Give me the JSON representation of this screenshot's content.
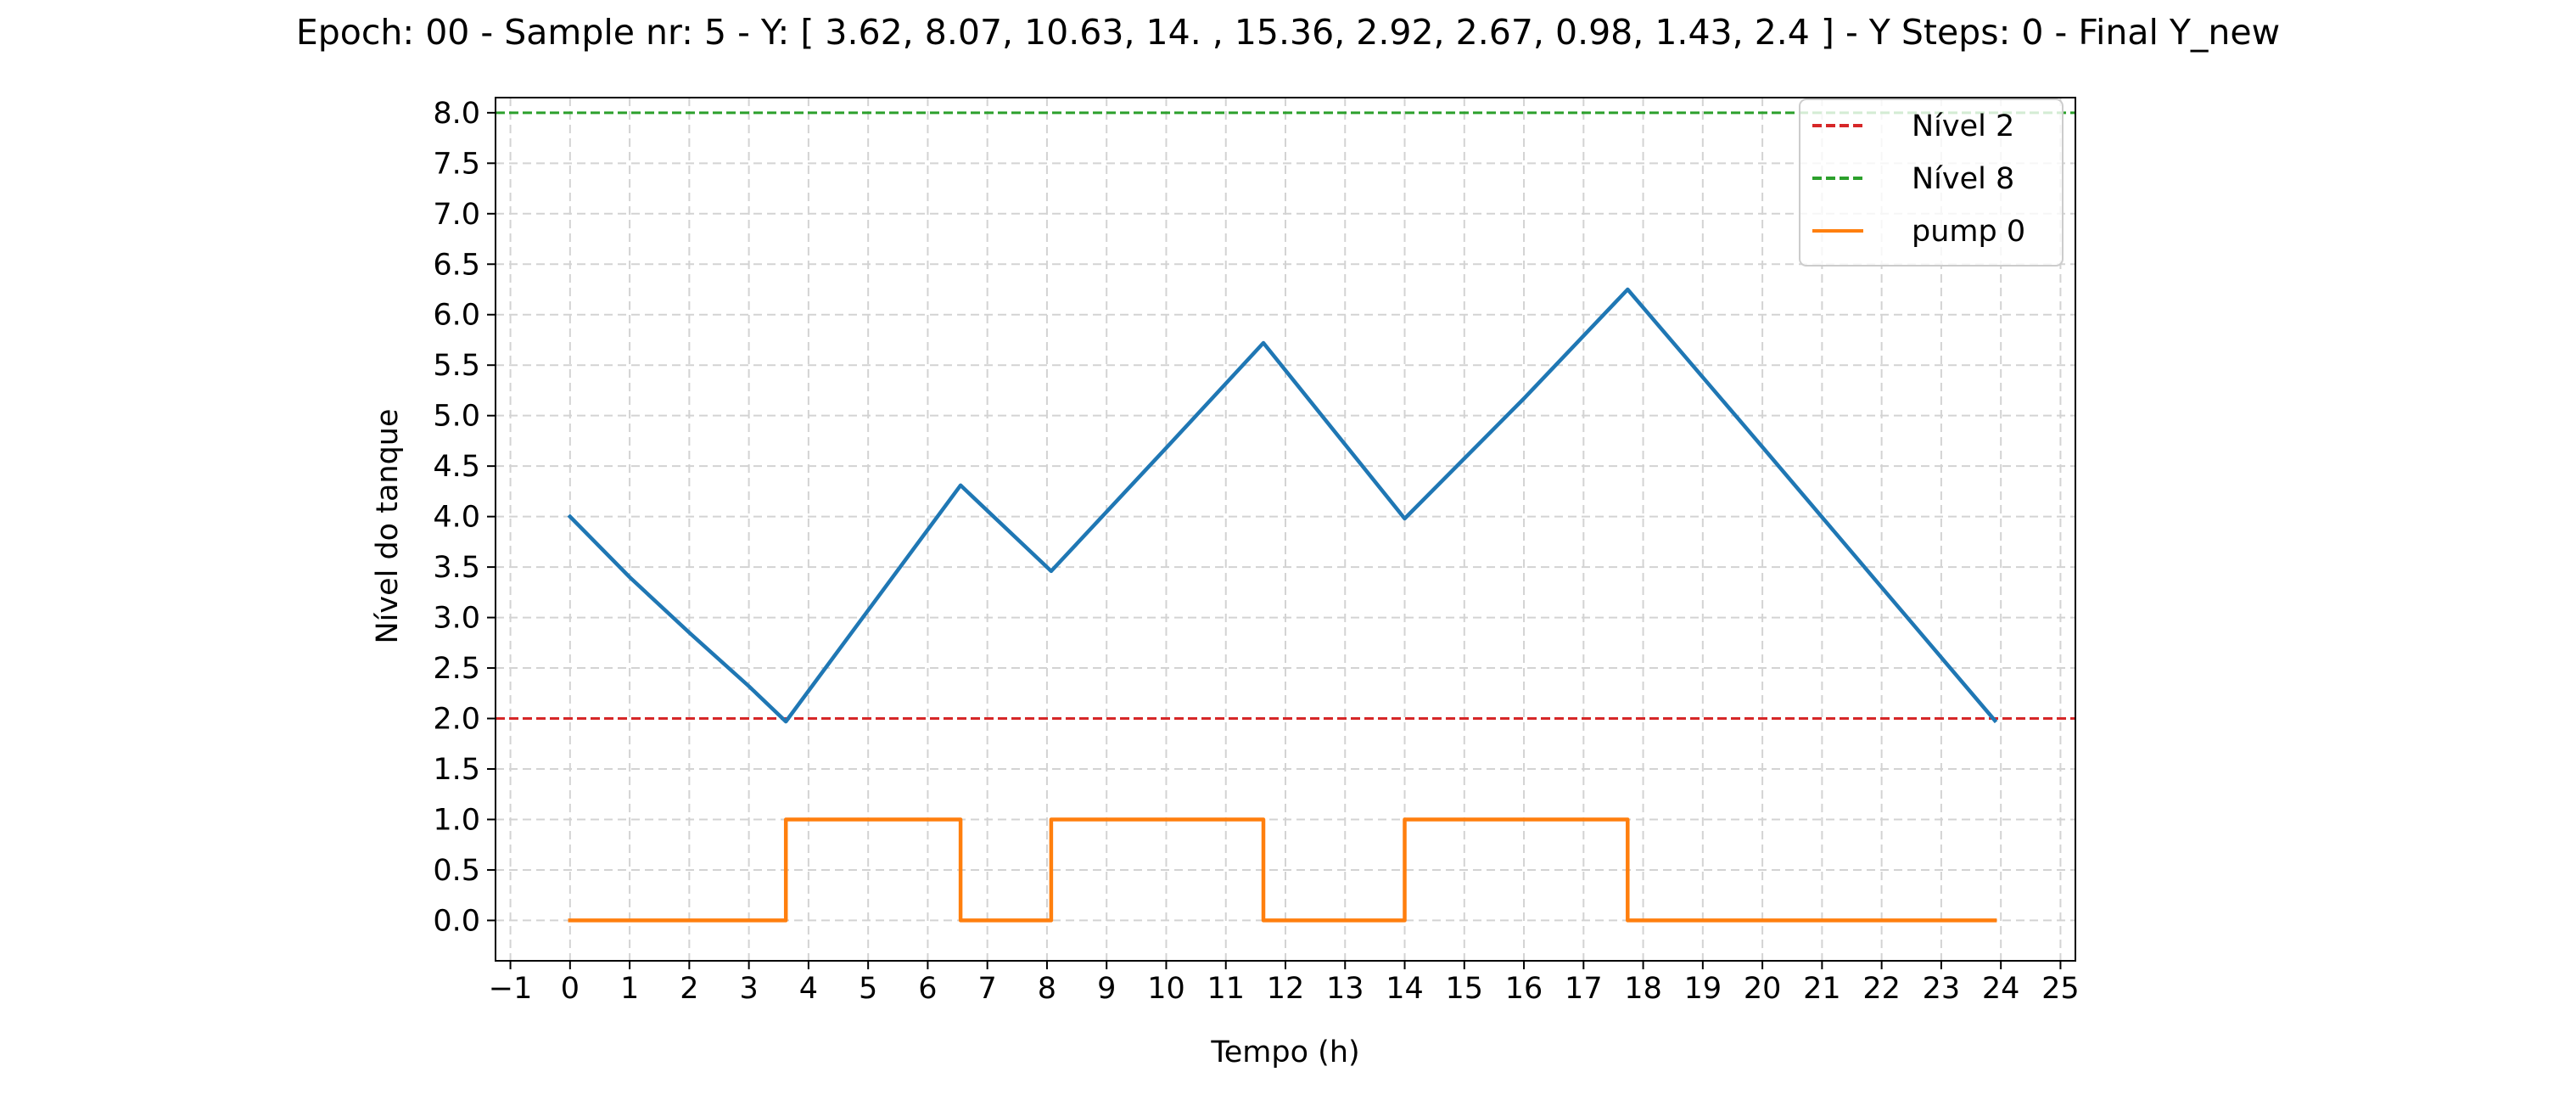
{
  "chart_data": {
    "type": "line",
    "title": "Epoch: 00 - Sample nr: 5 - Y: [ 3.62,  8.07, 10.63, 14.  , 15.36,  2.92,  2.67,  0.98,  1.43,  2.4 ] - Y Steps: 0  - Final Y_new",
    "xlabel": "Tempo (h)",
    "ylabel": "Nível do tanque",
    "xlim": [
      -1.25,
      25.25
    ],
    "ylim": [
      -0.4,
      8.15
    ],
    "xticks": [
      -1,
      0,
      1,
      2,
      3,
      4,
      5,
      6,
      7,
      8,
      9,
      10,
      11,
      12,
      13,
      14,
      15,
      16,
      17,
      18,
      19,
      20,
      21,
      22,
      23,
      24,
      25
    ],
    "xtick_labels": [
      "−1",
      "0",
      "1",
      "2",
      "3",
      "4",
      "5",
      "6",
      "7",
      "8",
      "9",
      "10",
      "11",
      "12",
      "13",
      "14",
      "15",
      "16",
      "17",
      "18",
      "19",
      "20",
      "21",
      "22",
      "23",
      "24",
      "25"
    ],
    "yticks": [
      0.0,
      0.5,
      1.0,
      1.5,
      2.0,
      2.5,
      3.0,
      3.5,
      4.0,
      4.5,
      5.0,
      5.5,
      6.0,
      6.5,
      7.0,
      7.5,
      8.0
    ],
    "ytick_labels": [
      "0.0",
      "0.5",
      "1.0",
      "1.5",
      "2.0",
      "2.5",
      "3.0",
      "3.5",
      "4.0",
      "4.5",
      "5.0",
      "5.5",
      "6.0",
      "6.5",
      "7.0",
      "7.5",
      "8.0"
    ],
    "grid": true,
    "legend_position": "top-right",
    "hlines": [
      {
        "name": "Nível 2",
        "y": 2,
        "color": "#d62728",
        "style": "dashed"
      },
      {
        "name": "Nível 8",
        "y": 8,
        "color": "#2ca02c",
        "style": "dashed"
      }
    ],
    "series": [
      {
        "color": "#1f77b4",
        "x": [
          0,
          1,
          2,
          3,
          3.62,
          6.55,
          8.07,
          10.0,
          11.63,
          14.0,
          16.0,
          17.74,
          20.0,
          22.0,
          23.9
        ],
        "y": [
          4.0,
          3.4,
          2.85,
          2.32,
          1.97,
          4.31,
          3.46,
          4.68,
          5.72,
          3.98,
          5.17,
          6.25,
          4.69,
          3.3,
          1.98
        ]
      },
      {
        "name": "pump 0",
        "color": "#ff7f0e",
        "x": [
          0,
          3.62,
          3.62,
          6.55,
          6.55,
          8.07,
          8.07,
          11.63,
          11.63,
          14.0,
          14.0,
          17.74,
          17.74,
          23.9
        ],
        "y": [
          0,
          0,
          1,
          1,
          0,
          0,
          1,
          1,
          0,
          0,
          1,
          1,
          0,
          0
        ]
      }
    ],
    "legend": [
      {
        "label": "Nível 2",
        "color": "#d62728",
        "style": "dashed"
      },
      {
        "label": "Nível 8",
        "color": "#2ca02c",
        "style": "dashed"
      },
      {
        "label": "pump 0",
        "color": "#ff7f0e",
        "style": "solid"
      }
    ]
  }
}
